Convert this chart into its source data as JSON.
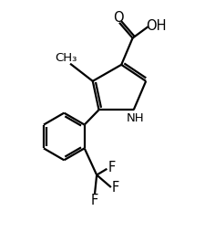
{
  "background_color": "#ffffff",
  "line_color": "#000000",
  "line_width": 1.6,
  "font_size": 9.5,
  "figsize": [
    2.26,
    2.54
  ],
  "dpi": 100,
  "xlim": [
    0,
    10
  ],
  "ylim": [
    0,
    11
  ]
}
